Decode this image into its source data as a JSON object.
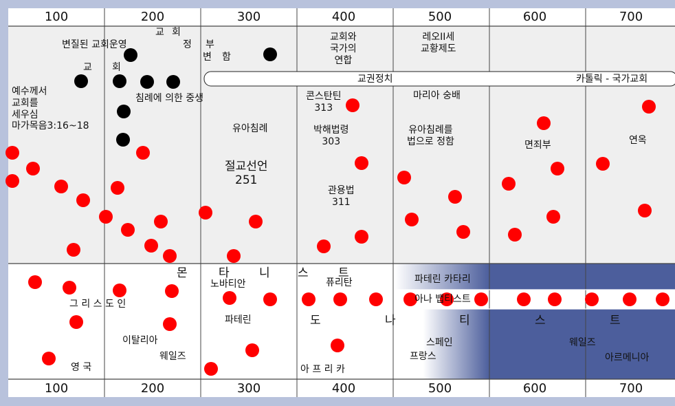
{
  "scale": {
    "top_labels": [
      "100",
      "200",
      "300",
      "400",
      "500",
      "600",
      "700"
    ],
    "bottom_labels": [
      "100",
      "200",
      "300",
      "400",
      "500",
      "600",
      "700"
    ]
  },
  "labels": {
    "church_founded_by_jesus": "예수께서\n교회를\n세우심\n마가목음3:16~18",
    "changed_church_administration": "변질된 교회운영",
    "church_gyo": "교",
    "church_hoe": "회",
    "church_gov_gyo": "교",
    "church_gov_hoe": "회",
    "church_gov_jeong": "정",
    "church_gov_bu": "부",
    "church_gov_byeon": "변",
    "church_gov_ham": "함",
    "regeneration_by_baptism": "침례에 의한 중생",
    "infant_baptism_300": "유아침례",
    "edict_251": "절교선언\n251",
    "union_church_state": "교회와\n국가의\n연합",
    "constantine_313": "콘스탄틴\n313",
    "persecution_303": "박해법령\n303",
    "toleration_311": "관용법\n311",
    "leo_iii_papacy": "레오II세\n교황제도",
    "mary_worship": "마리아 숭배",
    "infant_baptism_law": "유아침례를\n법으로 정함",
    "indulgence": "면죄부",
    "purgatory": "연옥",
    "papal_politics": "교권정치",
    "catholic_state_church": "카톨릭 - 국가교회",
    "greece": "그 리 스 도 인",
    "italy": "이탈리아",
    "wales_1": "웨일즈",
    "england": "영  국",
    "montanist_mon": "몬",
    "montanist_ta": "타",
    "montanist_ni": "니",
    "montanist_seu": "스",
    "montanist_teu": "트",
    "novatian": "노바티안",
    "puritan": "퓨리탄",
    "paterine": "파테린",
    "paterine_cathari": "파테린 카타리",
    "anabaptist": "아나 뱁티스트",
    "donatist_do": "도",
    "donatist_na": "나",
    "donatist_ti": "티",
    "donatist_seu": "스",
    "donatist_teu": "트",
    "africa": "아 프 리 카",
    "spain": "스페인",
    "france": "프랑스",
    "wales_2": "웨일즈",
    "armenia": "아르메니아"
  },
  "colors": {
    "frame_bg": "#b8c2dc",
    "upper_panel": "#efefef",
    "lower_panel": "#ffffff",
    "blue_band": "#4c5e9c",
    "martyr_dot": "#ff0000",
    "church_dot": "#000000",
    "gridline": "#444444"
  }
}
